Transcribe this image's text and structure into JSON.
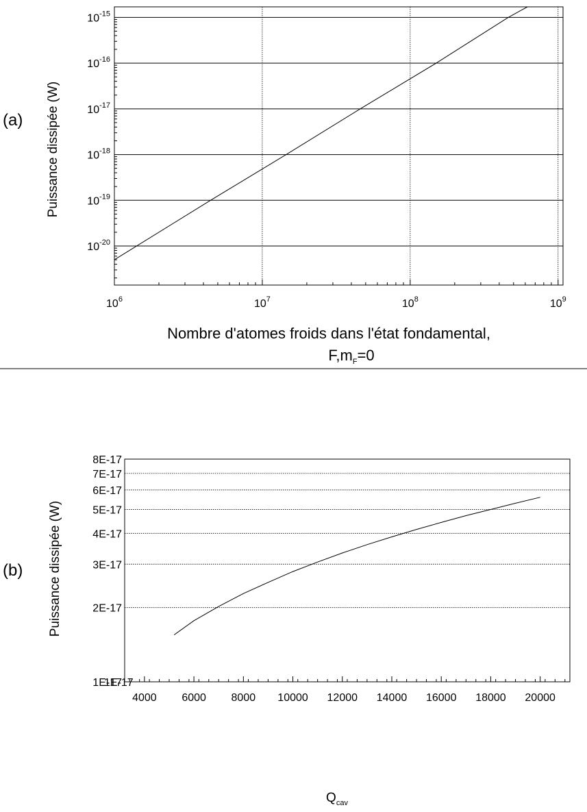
{
  "panels": {
    "a": {
      "label": "(a)"
    },
    "b": {
      "label": "(b)"
    }
  },
  "chart_data": [
    {
      "type": "line",
      "scale": {
        "x": "log",
        "y": "log"
      },
      "ylabel": "Puissance dissipée (W)",
      "xlabel_line1": "Nombre d'atomes froids dans l'état fondamental,",
      "xlabel_line2_main": "F,m",
      "xlabel_line2_sub": "F",
      "xlabel_line2_tail": "=0",
      "xlim": [
        1000000,
        1080000000
      ],
      "ylim": [
        1.4e-21,
        1.7e-15
      ],
      "x_ticks": [
        {
          "value": 1000000,
          "base": "10",
          "exp": "6"
        },
        {
          "value": 10000000,
          "base": "10",
          "exp": "7"
        },
        {
          "value": 100000000,
          "base": "10",
          "exp": "8"
        },
        {
          "value": 1000000000,
          "base": "10",
          "exp": "9"
        }
      ],
      "y_ticks": [
        {
          "value": 1e-20,
          "base": "10",
          "exp": "-20"
        },
        {
          "value": 1e-19,
          "base": "10",
          "exp": "-19"
        },
        {
          "value": 1e-18,
          "base": "10",
          "exp": "-18"
        },
        {
          "value": 1e-17,
          "base": "10",
          "exp": "-17"
        },
        {
          "value": 1e-16,
          "base": "10",
          "exp": "-16"
        },
        {
          "value": 1e-15,
          "base": "10",
          "exp": "-15"
        }
      ],
      "grid": {
        "x": "dotted",
        "y": "solid"
      },
      "series": [
        {
          "x": [
            1000000,
            4470000,
            14500000,
            46000000,
            150000000,
            460000000,
            620000000
          ],
          "y": [
            5e-21,
            1e-19,
            1e-18,
            1e-17,
            1e-16,
            1e-15,
            1.7e-15
          ]
        }
      ]
    },
    {
      "type": "line",
      "scale": {
        "x": "linear",
        "y": "log"
      },
      "ylabel": "Puissance dissipée (W)",
      "xlabel_main": "Q",
      "xlabel_sub": "cav",
      "xlim": [
        3200,
        21200
      ],
      "ylim": [
        1e-17,
        8e-17
      ],
      "x_ticks": [
        4000,
        6000,
        8000,
        10000,
        12000,
        14000,
        16000,
        18000,
        20000
      ],
      "y_ticks": [
        {
          "value": 1e-17,
          "label": "1E-17"
        },
        {
          "value": 2e-17,
          "label": "2E-17"
        },
        {
          "value": 3e-17,
          "label": "3E-17"
        },
        {
          "value": 4e-17,
          "label": "4E-17"
        },
        {
          "value": 5e-17,
          "label": "5E-17"
        },
        {
          "value": 6e-17,
          "label": "6E-17"
        },
        {
          "value": 7e-17,
          "label": "7E-17"
        },
        {
          "value": 8e-17,
          "label": "8E-17"
        }
      ],
      "y_extra_label": "1E-17",
      "grid": {
        "x": "none",
        "y": "dotted"
      },
      "series": [
        {
          "x": [
            5200,
            6000,
            7000,
            8000,
            9000,
            10000,
            11000,
            12000,
            13000,
            14000,
            15000,
            16000,
            17000,
            18000,
            19000,
            20000
          ],
          "y": [
            1.55e-17,
            1.77e-17,
            2.02e-17,
            2.28e-17,
            2.53e-17,
            2.8e-17,
            3.06e-17,
            3.33e-17,
            3.6e-17,
            3.87e-17,
            4.15e-17,
            4.43e-17,
            4.72e-17,
            5e-17,
            5.3e-17,
            5.6e-17
          ]
        }
      ]
    }
  ]
}
